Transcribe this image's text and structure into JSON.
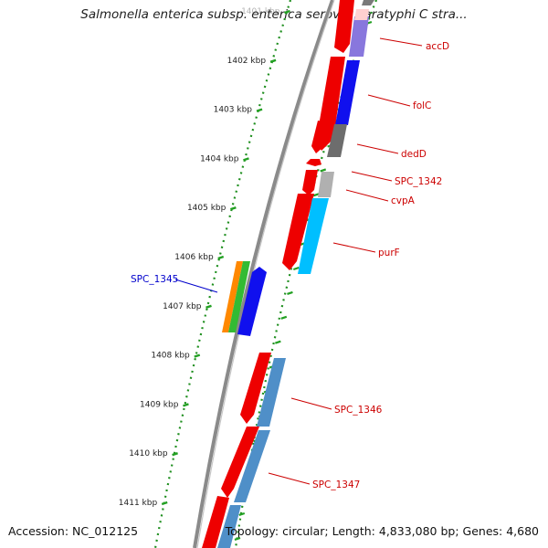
{
  "title": "Salmonella enterica subsp. enterica serovar Paratyphi C stra...",
  "footer": {
    "accession": "Accession: NC_012125",
    "summary": "Topology: circular; Length: 4,833,080 bp; Genes: 4,680"
  },
  "colors": {
    "backbone": "#7a7a7a",
    "tick": "#22a022",
    "dots": "#1f8f1f",
    "label_red": "#cc0000",
    "label_blue": "#0000cc"
  },
  "scale": {
    "unit": "kbp",
    "ticks": [
      {
        "label": "1401 kbp"
      },
      {
        "label": "1402 kbp"
      },
      {
        "label": "1403 kbp"
      },
      {
        "label": "1404 kbp"
      },
      {
        "label": "1405 kbp"
      },
      {
        "label": "1406 kbp"
      },
      {
        "label": "1407 kbp"
      },
      {
        "label": "1408 kbp"
      },
      {
        "label": "1409 kbp"
      },
      {
        "label": "1410 kbp"
      },
      {
        "label": "1411 kbp"
      }
    ]
  },
  "genes": [
    {
      "name": "accD",
      "color": "#cc0000"
    },
    {
      "name": "folC",
      "color": "#cc0000"
    },
    {
      "name": "dedD",
      "color": "#cc0000"
    },
    {
      "name": "SPC_1342",
      "color": "#cc0000"
    },
    {
      "name": "cvpA",
      "color": "#cc0000"
    },
    {
      "name": "purF",
      "color": "#cc0000"
    },
    {
      "name": "SPC_1345",
      "color": "#0000cc"
    },
    {
      "name": "SPC_1346",
      "color": "#cc0000"
    },
    {
      "name": "SPC_1347",
      "color": "#cc0000"
    }
  ]
}
